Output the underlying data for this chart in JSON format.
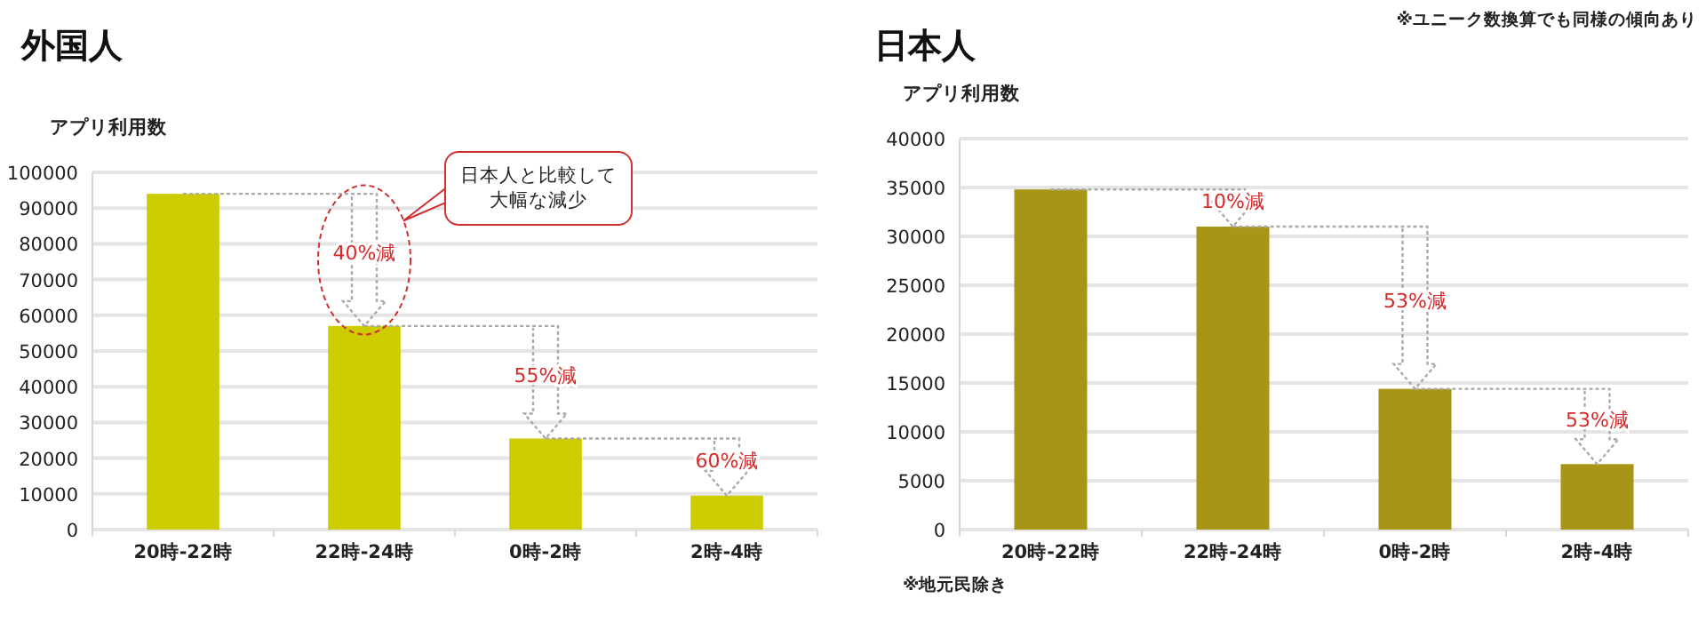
{
  "chart_data": [
    {
      "type": "bar",
      "title": "外国人",
      "ylabel": "アプリ利用数",
      "categories": [
        "20時-22時",
        "22時-24時",
        "0時-2時",
        "2時-4時"
      ],
      "values": [
        94000,
        57000,
        25500,
        9500
      ],
      "color": "#cccc00",
      "ylim": [
        0,
        100000
      ],
      "yticks": [
        0,
        10000,
        20000,
        30000,
        40000,
        50000,
        60000,
        70000,
        80000,
        90000,
        100000
      ],
      "grid": "y",
      "annotations": [
        "40%減",
        {
          "text": "55%減",
          "x": "0時-2時",
          "y": 25500
        },
        {
          "text": "60%減",
          "x": "2時-4時",
          "y": 9500
        },
        "日本人と比較して大幅な減少"
      ]
    },
    {
      "type": "bar",
      "title": "日本人",
      "ylabel": "アプリ利用数",
      "categories": [
        "20時-22時",
        "22時-24時",
        "0時-2時",
        "2時-4時"
      ],
      "values": [
        34800,
        31000,
        14400,
        6700
      ],
      "color": "#a89416",
      "ylim": [
        0,
        40000
      ],
      "yticks": [
        0,
        5000,
        10000,
        15000,
        20000,
        25000,
        30000,
        35000,
        40000
      ],
      "grid": "y",
      "annotations": [
        {
          "text": "10%減",
          "x": "22時-24時",
          "y": 31000
        },
        "53%減",
        {
          "text": "53%減",
          "x": "2時-4時",
          "y": 6700
        },
        "※ユニーク数換算でも同様の傾向あり",
        "※地元民除き"
      ]
    }
  ]
}
